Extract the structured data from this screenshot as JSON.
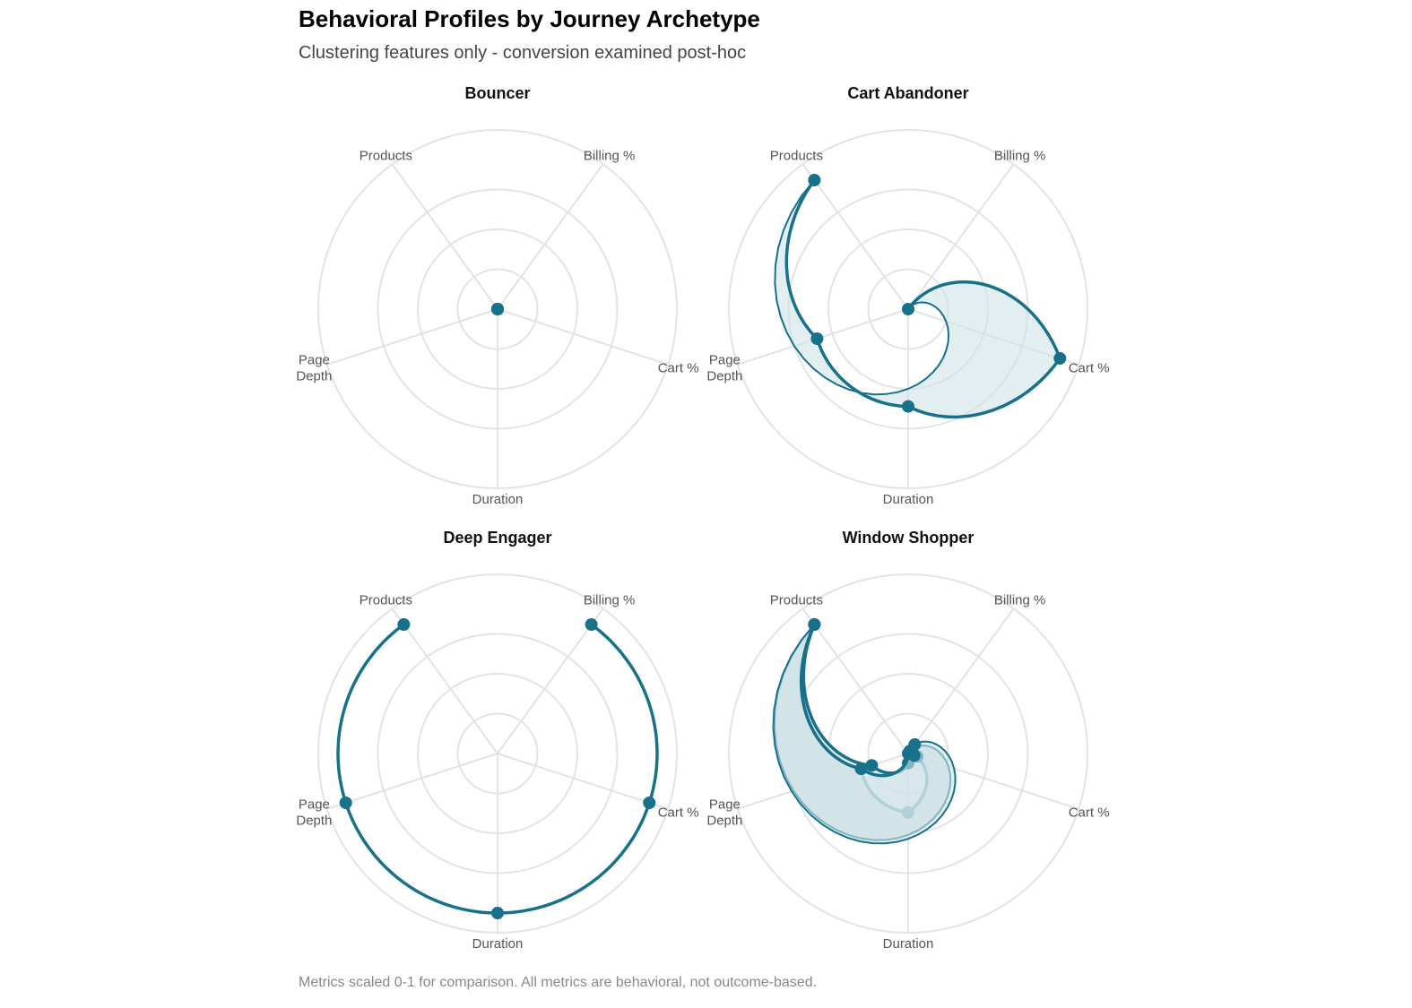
{
  "title": "Behavioral Profiles by Journey Archetype",
  "subtitle": "Clustering features only - conversion examined post-hoc",
  "caption": "Metrics scaled 0-1 for comparison. All metrics are behavioral, not outcome-based.",
  "colors": {
    "line": "#17718a",
    "fill": "#d1e3e7",
    "grid": "#e3e3e3",
    "axis_label": "#555555"
  },
  "chart_data": [
    {
      "type": "radar",
      "title": "Bouncer",
      "axes": [
        "Billing %",
        "Cart %",
        "Duration",
        "Page Depth",
        "Products"
      ],
      "ylim": [
        0,
        1
      ],
      "grid": true,
      "series": [
        {
          "values": [
            0,
            0,
            0,
            0,
            0
          ]
        }
      ]
    },
    {
      "type": "radar",
      "title": "Cart Abandoner",
      "axes": [
        "Billing %",
        "Cart %",
        "Duration",
        "Page Depth",
        "Products"
      ],
      "ylim": [
        0,
        1
      ],
      "grid": true,
      "series": [
        {
          "values": [
            0,
            1.0,
            0.61,
            0.6,
            1.0
          ]
        }
      ]
    },
    {
      "type": "radar",
      "title": "Deep Engager",
      "axes": [
        "Billing %",
        "Cart %",
        "Duration",
        "Page Depth",
        "Products"
      ],
      "ylim": [
        0,
        1
      ],
      "grid": true,
      "series": [
        {
          "values": [
            1.0,
            1.0,
            1.0,
            1.0,
            1.0
          ]
        }
      ]
    },
    {
      "type": "radar",
      "title": "Window Shopper",
      "axes": [
        "Billing %",
        "Cart %",
        "Duration",
        "Page Depth",
        "Products"
      ],
      "ylim": [
        0,
        1
      ],
      "grid": true,
      "series": [
        {
          "values": [
            0.02,
            0.03,
            0.37,
            0.31,
            1.0
          ]
        },
        {
          "values": [
            0.02,
            0.06,
            0.06,
            0.24,
            1.0
          ]
        },
        {
          "values": [
            0.07,
            0.04,
            0.0,
            0.31,
            1.0
          ]
        }
      ]
    }
  ]
}
